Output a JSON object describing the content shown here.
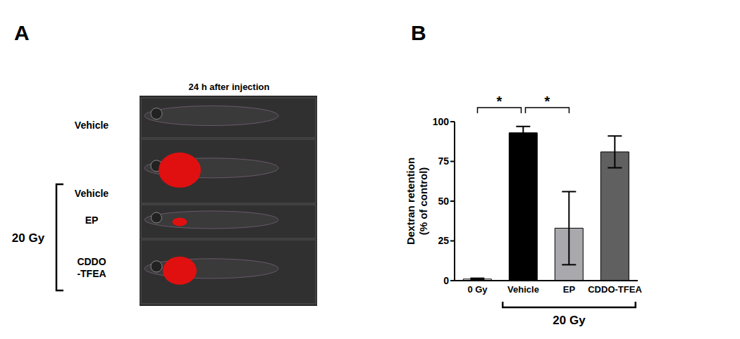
{
  "panel_a": {
    "label": "A",
    "title": "24 h after injection",
    "group_label": "20 Gy",
    "rows": [
      {
        "label": "Vehicle",
        "in_group": false
      },
      {
        "label": "Vehicle",
        "in_group": true
      },
      {
        "label": "EP",
        "in_group": true
      },
      {
        "label": "CDDO\n-TFEA",
        "in_group": true
      }
    ]
  },
  "chart_data": {
    "type": "bar",
    "panel_label": "B",
    "y_label": "Dextran retention\n(% of control)",
    "categories": [
      "0 Gy",
      "Vehicle",
      "EP",
      "CDDO-TFEA"
    ],
    "values": [
      1,
      93,
      33,
      81
    ],
    "errors": [
      0.5,
      4,
      23,
      10
    ],
    "colors": [
      "#ffffff",
      "#000000",
      "#a9a9ad",
      "#606060"
    ],
    "ylim": [
      0,
      100
    ],
    "yticks": [
      0,
      25,
      50,
      75,
      100
    ],
    "grid": false,
    "annotations": [
      {
        "text": "*",
        "between": [
          "0 Gy",
          "Vehicle"
        ]
      },
      {
        "text": "*",
        "between": [
          "Vehicle",
          "EP"
        ]
      }
    ],
    "group": {
      "label": "20 Gy",
      "categories": [
        "Vehicle",
        "EP",
        "CDDO-TFEA"
      ]
    }
  }
}
